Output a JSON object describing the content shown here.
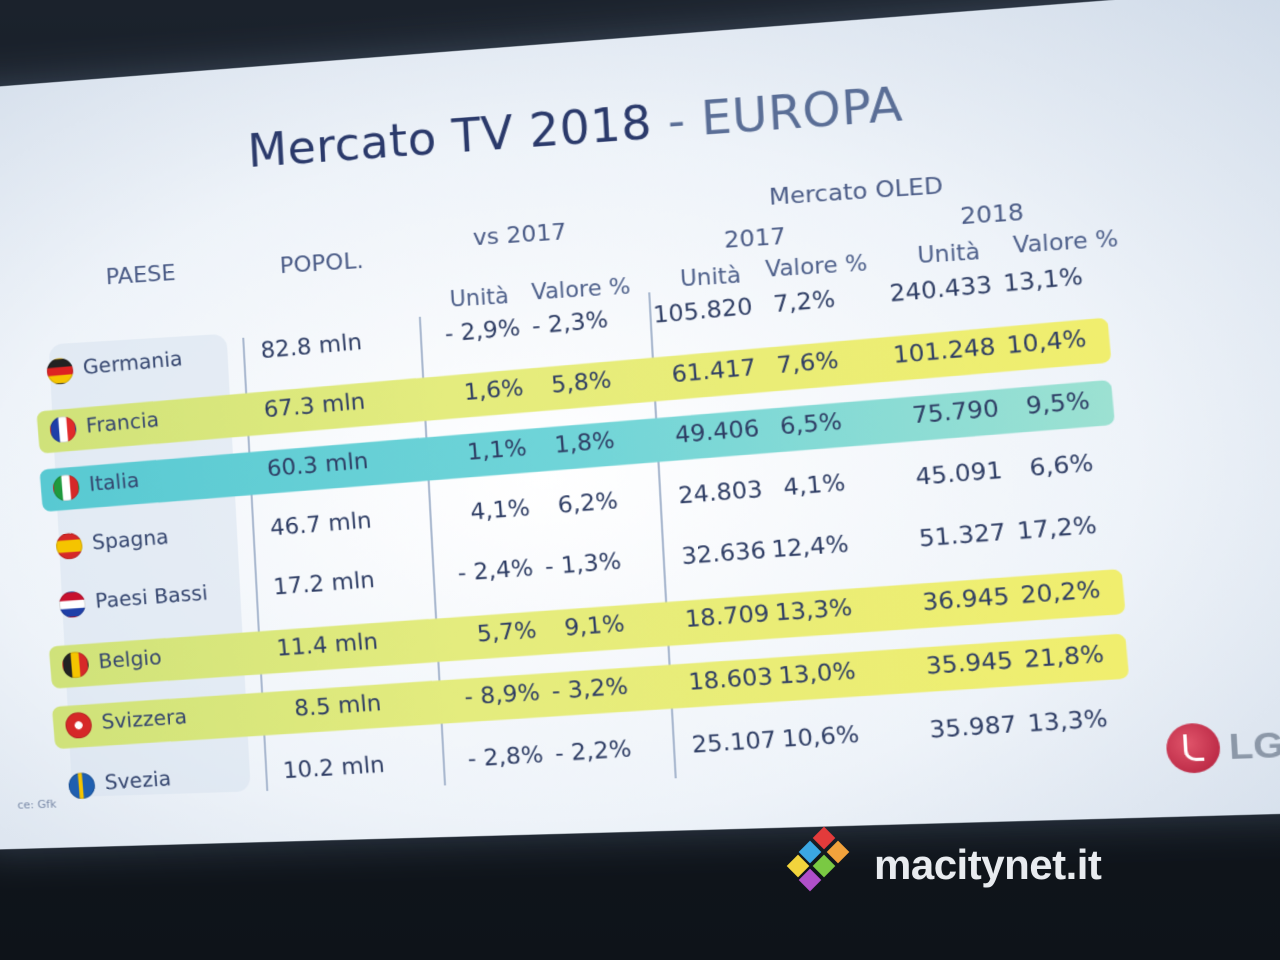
{
  "slide": {
    "title_main": "Mercato TV 2018",
    "title_sep": " - ",
    "title_sub": "EUROPA",
    "headers": {
      "paese": "PAESE",
      "popol": "POPOL.",
      "vs2017": "vs 2017",
      "mercato_oled": "Mercato OLED",
      "year_2017": "2017",
      "year_2018": "2018",
      "unita": "Unità",
      "valore": "Valore %"
    },
    "rows": [
      {
        "country": "Germania",
        "pop": "82.8 mln",
        "vs_unita": "- 2,9%",
        "vs_valore": "- 2,3%",
        "u2017": "105.820",
        "v2017": "7,2%",
        "u2018": "240.433",
        "v2018": "13,1%",
        "highlight": "none",
        "flag": "germany-flag-icon"
      },
      {
        "country": "Francia",
        "pop": "67.3 mln",
        "vs_unita": "1,6%",
        "vs_valore": "5,8%",
        "u2017": "61.417",
        "v2017": "7,6%",
        "u2018": "101.248",
        "v2018": "10,4%",
        "highlight": "green",
        "flag": "france-flag-icon"
      },
      {
        "country": "Italia",
        "pop": "60.3 mln",
        "vs_unita": "1,1%",
        "vs_valore": "1,8%",
        "u2017": "49.406",
        "v2017": "6,5%",
        "u2018": "75.790",
        "v2018": "9,5%",
        "highlight": "cyan",
        "flag": "italy-flag-icon"
      },
      {
        "country": "Spagna",
        "pop": "46.7 mln",
        "vs_unita": "4,1%",
        "vs_valore": "6,2%",
        "u2017": "24.803",
        "v2017": "4,1%",
        "u2018": "45.091",
        "v2018": "6,6%",
        "highlight": "none",
        "flag": "spain-flag-icon"
      },
      {
        "country": "Paesi Bassi",
        "pop": "17.2 mln",
        "vs_unita": "- 2,4%",
        "vs_valore": "- 1,3%",
        "u2017": "32.636",
        "v2017": "12,4%",
        "u2018": "51.327",
        "v2018": "17,2%",
        "highlight": "none",
        "flag": "netherlands-flag-icon"
      },
      {
        "country": "Belgio",
        "pop": "11.4 mln",
        "vs_unita": "5,7%",
        "vs_valore": "9,1%",
        "u2017": "18.709",
        "v2017": "13,3%",
        "u2018": "36.945",
        "v2018": "20,2%",
        "highlight": "green",
        "flag": "belgium-flag-icon"
      },
      {
        "country": "Svizzera",
        "pop": "8.5 mln",
        "vs_unita": "- 8,9%",
        "vs_valore": "- 3,2%",
        "u2017": "18.603",
        "v2017": "13,0%",
        "u2018": "35.945",
        "v2018": "21,8%",
        "highlight": "green",
        "flag": "switzerland-flag-icon"
      },
      {
        "country": "Svezia",
        "pop": "10.2 mln",
        "vs_unita": "- 2,8%",
        "vs_valore": "- 2,2%",
        "u2017": "25.107",
        "v2017": "10,6%",
        "u2018": "35.987",
        "v2018": "13,3%",
        "highlight": "none",
        "flag": "sweden-flag-icon"
      }
    ],
    "source": "ce: Gfk",
    "logo_text": "LG"
  },
  "watermark": {
    "text": "macitynet.it"
  },
  "colors": {
    "highlight_green": "#e4ec7e",
    "highlight_cyan": "#6fd4d8",
    "title": "#2b3a6b"
  }
}
